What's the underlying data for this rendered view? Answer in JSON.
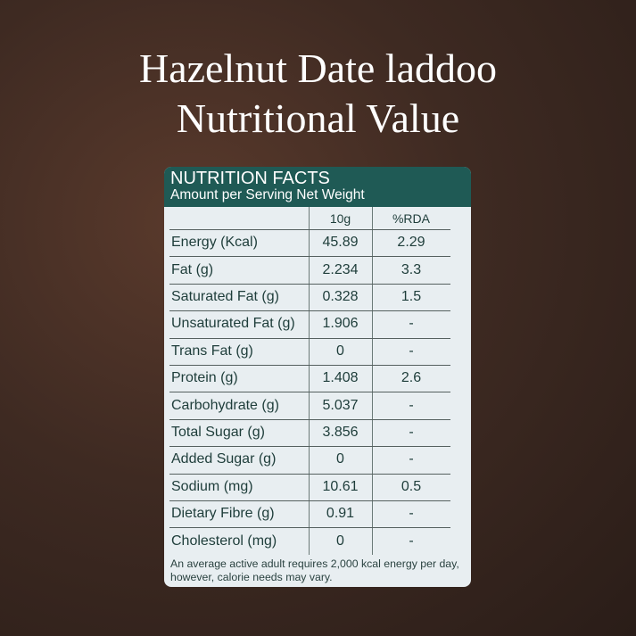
{
  "title": {
    "line1": "Hazelnut Date laddoo",
    "line2": "Nutritional Value"
  },
  "card": {
    "heading": "NUTRITION FACTS",
    "subheading": "Amount per Serving Net Weight",
    "columns": [
      "",
      "10g",
      "%RDA"
    ],
    "rows": [
      {
        "label": "Energy (Kcal)",
        "value": "45.89",
        "rda": "2.29"
      },
      {
        "label": "Fat (g)",
        "value": "2.234",
        "rda": "3.3"
      },
      {
        "label": "Saturated Fat (g)",
        "value": "0.328",
        "rda": "1.5"
      },
      {
        "label": "Unsaturated Fat (g)",
        "value": "1.906",
        "rda": "-"
      },
      {
        "label": "Trans Fat (g)",
        "value": "0",
        "rda": "-"
      },
      {
        "label": "Protein (g)",
        "value": "1.408",
        "rda": "2.6"
      },
      {
        "label": "Carbohydrate (g)",
        "value": "5.037",
        "rda": "-"
      },
      {
        "label": "Total Sugar (g)",
        "value": "3.856",
        "rda": "-"
      },
      {
        "label": "Added Sugar (g)",
        "value": "0",
        "rda": "-"
      },
      {
        "label": "Sodium (mg)",
        "value": "10.61",
        "rda": "0.5"
      },
      {
        "label": "Dietary Fibre (g)",
        "value": "0.91",
        "rda": "-"
      },
      {
        "label": "Cholesterol (mg)",
        "value": "0",
        "rda": "-"
      }
    ],
    "footnote": "An average active adult requires 2,000 kcal energy per day, however, calorie needs may vary."
  },
  "colors": {
    "header": "#1f5a55",
    "text": "#1e3d3a",
    "background": "#3e2a22"
  }
}
